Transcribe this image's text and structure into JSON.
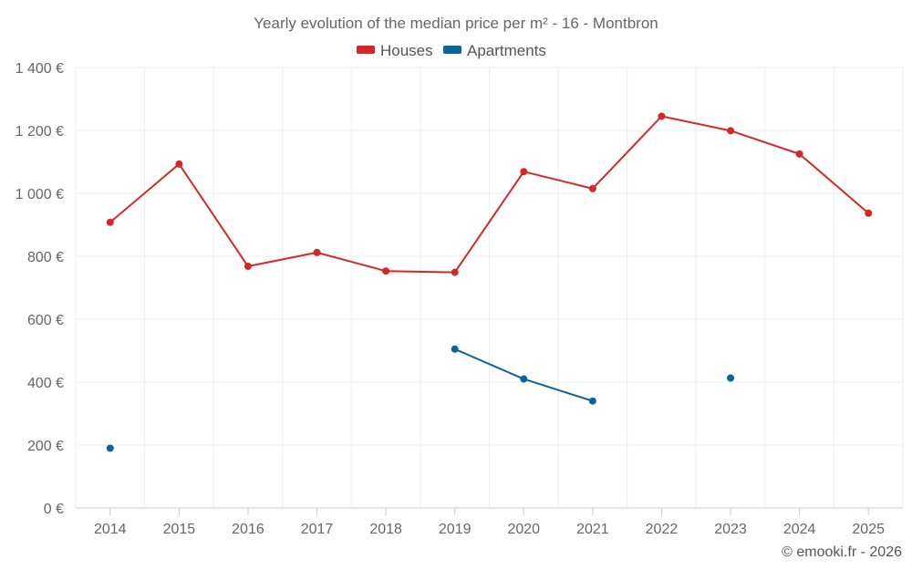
{
  "chart_data": {
    "type": "line",
    "title": "Yearly evolution of the median price per m² - 16 - Montbron",
    "categories": [
      "2014",
      "2015",
      "2016",
      "2017",
      "2018",
      "2019",
      "2020",
      "2021",
      "2022",
      "2023",
      "2024",
      "2025"
    ],
    "ylim": [
      0,
      1400
    ],
    "yticks": [
      0,
      200,
      400,
      600,
      800,
      1000,
      1200,
      1400
    ],
    "ytick_labels": [
      "0 €",
      "200 €",
      "400 €",
      "600 €",
      "800 €",
      "1 000 €",
      "1 200 €",
      "1 400 €"
    ],
    "grid": true,
    "legend_position": "top-center",
    "series": [
      {
        "name": "Houses",
        "color": "#d62728",
        "values": [
          908,
          1093,
          768,
          812,
          753,
          749,
          1069,
          1015,
          1245,
          1199,
          1125,
          937
        ]
      },
      {
        "name": "Apartments",
        "color": "#0a6699",
        "values": [
          190,
          null,
          null,
          null,
          null,
          505,
          410,
          340,
          null,
          413,
          null,
          null
        ]
      }
    ]
  },
  "credit": "© emooki.fr - 2026"
}
